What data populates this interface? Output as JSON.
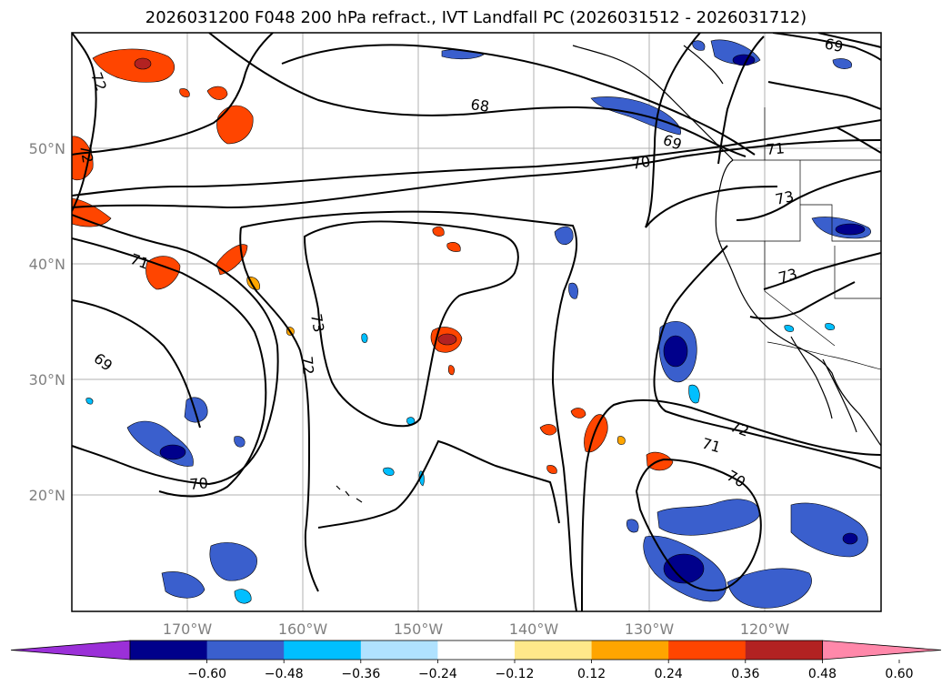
{
  "title": "2026031200 F048 200 hPa refract., IVT Landfall PC (2026031512 - 2026031712)",
  "lat_labels": [
    "50°N",
    "40°N",
    "30°N",
    "20°N"
  ],
  "lon_labels": [
    "170°W",
    "160°W",
    "150°W",
    "140°W",
    "130°W",
    "120°W"
  ],
  "contour_labels": [
    "72",
    "72",
    "68",
    "69",
    "69",
    "70",
    "71",
    "73",
    "71",
    "73",
    "73",
    "72",
    "69",
    "70",
    "72",
    "71",
    "70"
  ],
  "colorbar": {
    "ticks": [
      "−0.60",
      "−0.48",
      "−0.36",
      "−0.24",
      "−0.12",
      "0.12",
      "0.24",
      "0.36",
      "0.48",
      "0.60"
    ],
    "colors": [
      "#9b30d8",
      "#00008b",
      "#3a5fcd",
      "#00bfff",
      "#b0e2ff",
      "#ffffff",
      "#ffe88a",
      "#ffa500",
      "#ff4500",
      "#b22222",
      "#ff88aa"
    ]
  }
}
